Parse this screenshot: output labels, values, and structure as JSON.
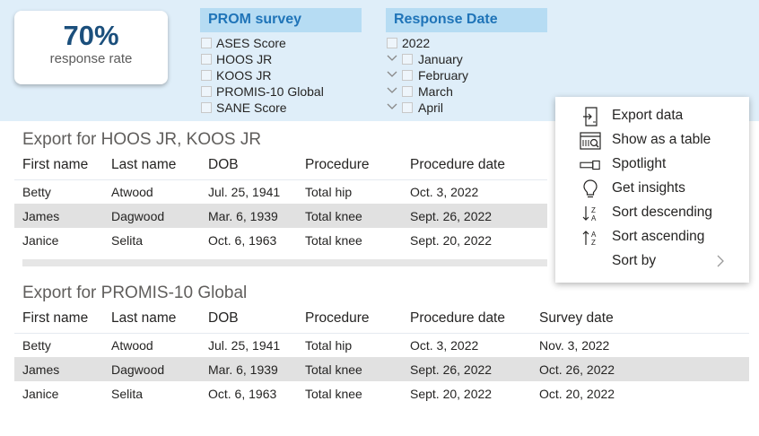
{
  "kpi": {
    "value": "70%",
    "label": "response rate"
  },
  "prom_slicer": {
    "title": "PROM survey",
    "items": [
      "ASES Score",
      "HOOS JR",
      "KOOS JR",
      "PROMIS-10 Global",
      "SANE Score"
    ]
  },
  "date_slicer": {
    "title": "Response Date",
    "year": "2022",
    "months": [
      "January",
      "February",
      "March",
      "April"
    ]
  },
  "table1": {
    "title": "Export for HOOS JR, KOOS JR",
    "columns": [
      "First name",
      "Last name",
      "DOB",
      "Procedure",
      "Procedure date"
    ],
    "rows": [
      [
        "Betty",
        "Atwood",
        "Jul. 25, 1941",
        "Total hip",
        "Oct. 3, 2022"
      ],
      [
        "James",
        "Dagwood",
        "Mar. 6, 1939",
        "Total knee",
        "Sept. 26, 2022"
      ],
      [
        "Janice",
        "Selita",
        "Oct. 6, 1963",
        "Total knee",
        "Sept. 20, 2022"
      ]
    ]
  },
  "table2": {
    "title": "Export for PROMIS-10 Global",
    "columns": [
      "First name",
      "Last name",
      "DOB",
      "Procedure",
      "Procedure date",
      "Survey date"
    ],
    "rows": [
      [
        "Betty",
        "Atwood",
        "Jul. 25, 1941",
        "Total hip",
        "Oct. 3, 2022",
        "Nov. 3, 2022"
      ],
      [
        "James",
        "Dagwood",
        "Mar. 6, 1939",
        "Total knee",
        "Sept. 26, 2022",
        "Oct. 26, 2022"
      ],
      [
        "Janice",
        "Selita",
        "Oct. 6, 1963",
        "Total knee",
        "Sept. 20, 2022",
        "Oct. 20, 2022"
      ]
    ]
  },
  "context_menu": {
    "items": [
      {
        "label": "Export data",
        "icon": "export-icon"
      },
      {
        "label": "Show as a table",
        "icon": "table-view-icon"
      },
      {
        "label": "Spotlight",
        "icon": "spotlight-icon"
      },
      {
        "label": "Get insights",
        "icon": "lightbulb-icon"
      },
      {
        "label": "Sort descending",
        "icon": "sort-descending-icon"
      },
      {
        "label": "Sort ascending",
        "icon": "sort-ascending-icon"
      },
      {
        "label": "Sort by",
        "icon": "chevron-right-icon"
      }
    ]
  }
}
